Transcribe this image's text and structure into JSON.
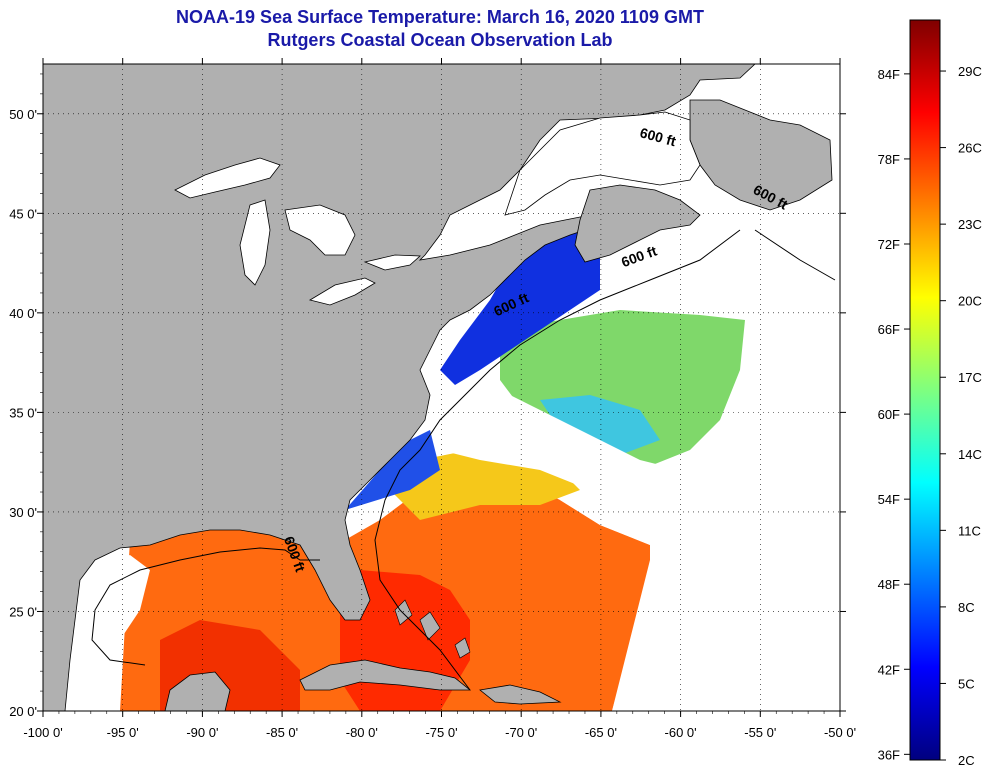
{
  "title": "NOAA-19 Sea Surface Temperature:  March 16, 2020 1109 GMT",
  "subtitle": "Rutgers Coastal Ocean Observation Lab",
  "map": {
    "lon_range": [
      -100,
      -50
    ],
    "lat_range": [
      20,
      52.5
    ],
    "x_ticks": [
      {
        "lon": -100,
        "label": "-100 0'"
      },
      {
        "lon": -95,
        "label": "-95 0'"
      },
      {
        "lon": -90,
        "label": "-90 0'"
      },
      {
        "lon": -85,
        "label": "-85 0'"
      },
      {
        "lon": -80,
        "label": "-80 0'"
      },
      {
        "lon": -75,
        "label": "-75 0'"
      },
      {
        "lon": -70,
        "label": "-70 0'"
      },
      {
        "lon": -65,
        "label": "-65 0'"
      },
      {
        "lon": -60,
        "label": "-60 0'"
      },
      {
        "lon": -55,
        "label": "-55 0'"
      },
      {
        "lon": -50,
        "label": "-50 0'"
      }
    ],
    "y_ticks": [
      {
        "lat": 20,
        "label": "20 0'"
      },
      {
        "lat": 25,
        "label": "25 0'"
      },
      {
        "lat": 30,
        "label": "30 0'"
      },
      {
        "lat": 35,
        "label": "35 0'"
      },
      {
        "lat": 40,
        "label": "40 0'"
      },
      {
        "lat": 45,
        "label": "45 0'"
      },
      {
        "lat": 50,
        "label": "50 0'"
      }
    ],
    "contour_labels": [
      {
        "text": "600 ft",
        "lon": -61.5,
        "lat": 48.6,
        "rotate": 15
      },
      {
        "text": "600 ft",
        "lon": -54.5,
        "lat": 45.6,
        "rotate": 28
      },
      {
        "text": "600 ft",
        "lon": -62.5,
        "lat": 42.6,
        "rotate": -20
      },
      {
        "text": "600 ft",
        "lon": -70.5,
        "lat": 40.2,
        "rotate": -25
      },
      {
        "text": "600 ft",
        "lon": -84.5,
        "lat": 27.8,
        "rotate": 70
      }
    ],
    "colors": {
      "land": "#b0b0b0",
      "water": "#ffffff",
      "coast": "#000000",
      "grid": "#000000"
    }
  },
  "colorbar": {
    "f_labels": [
      {
        "value": 84,
        "label": "84F"
      },
      {
        "value": 78,
        "label": "78F"
      },
      {
        "value": 72,
        "label": "72F"
      },
      {
        "value": 66,
        "label": "66F"
      },
      {
        "value": 60,
        "label": "60F"
      },
      {
        "value": 54,
        "label": "54F"
      },
      {
        "value": 48,
        "label": "48F"
      },
      {
        "value": 42,
        "label": "42F"
      },
      {
        "value": 36,
        "label": "36F"
      }
    ],
    "c_labels": [
      {
        "value": 29,
        "label": "29C"
      },
      {
        "value": 26,
        "label": "26C"
      },
      {
        "value": 23,
        "label": "23C"
      },
      {
        "value": 20,
        "label": "20C"
      },
      {
        "value": 17,
        "label": "17C"
      },
      {
        "value": 14,
        "label": "14C"
      },
      {
        "value": 11,
        "label": "11C"
      },
      {
        "value": 8,
        "label": "8C"
      },
      {
        "value": 5,
        "label": "5C"
      },
      {
        "value": 2,
        "label": "2C"
      }
    ],
    "c_min": 2,
    "c_max": 31,
    "stops": [
      "#00007f",
      "#0000ff",
      "#007fff",
      "#00ffff",
      "#7fff7f",
      "#ffff00",
      "#ff7f00",
      "#ff0000",
      "#7f0000"
    ]
  }
}
